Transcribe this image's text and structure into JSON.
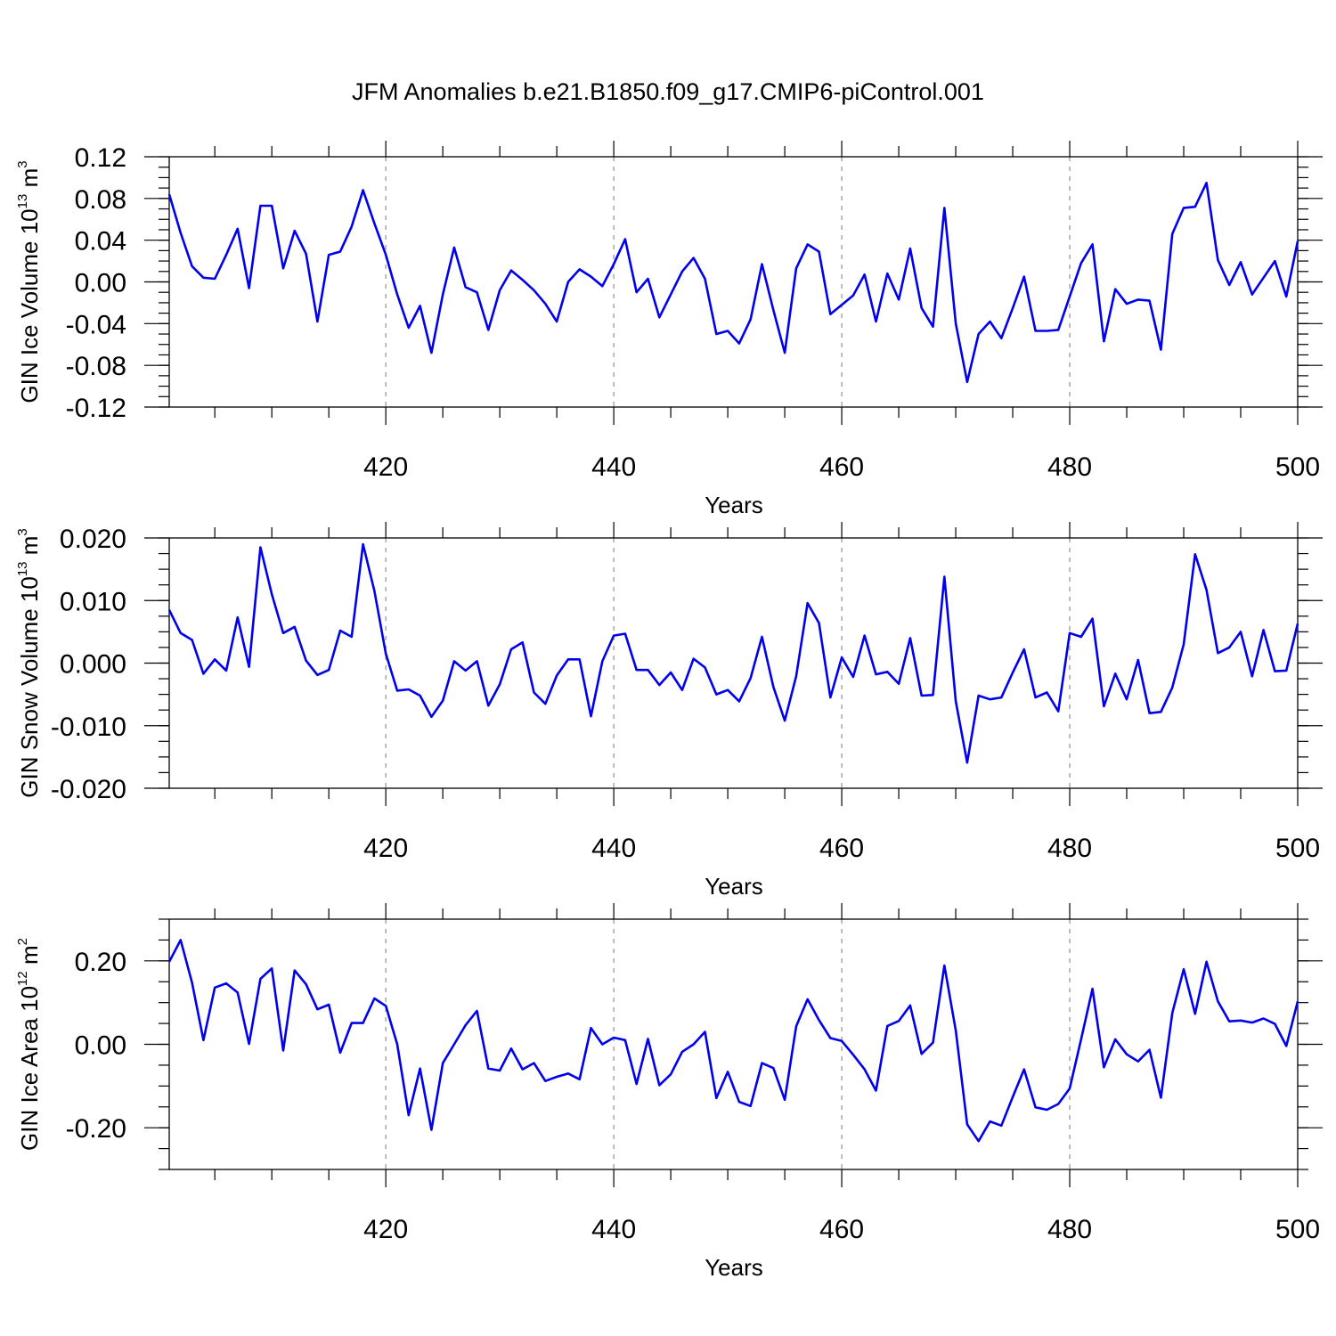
{
  "title": "JFM Anomalies b.e21.B1850.f09_g17.CMIP6-piControl.001",
  "colors": {
    "line": "#0000ee",
    "grid": "#999999",
    "axis": "#000000"
  },
  "chart_data": [
    {
      "type": "line",
      "ylabel": {
        "text": "GIN Ice Volume 10",
        "exp": "13",
        "unit": " m",
        "unit_exp": "3"
      },
      "xlabel": "Years",
      "xlim": [
        401,
        500
      ],
      "ylim": [
        -0.12,
        0.12
      ],
      "xticks": [
        420,
        440,
        460,
        480,
        500
      ],
      "yticks": [
        -0.12,
        -0.08,
        -0.04,
        0.0,
        0.04,
        0.08,
        0.12
      ],
      "ytick_labels": [
        "-0.12",
        "-0.08",
        "-0.04",
        "0.00",
        "0.04",
        "0.08",
        "0.12"
      ],
      "x_start": 401,
      "values": [
        0.084,
        0.047,
        0.015,
        0.004,
        0.003,
        0.026,
        0.051,
        -0.006,
        0.073,
        0.073,
        0.013,
        0.049,
        0.027,
        -0.038,
        0.026,
        0.029,
        0.053,
        0.088,
        0.056,
        0.026,
        -0.012,
        -0.044,
        -0.023,
        -0.068,
        -0.012,
        0.033,
        -0.005,
        -0.01,
        -0.046,
        -0.008,
        0.011,
        0.002,
        -0.008,
        -0.021,
        -0.038,
        0.0,
        0.012,
        0.005,
        -0.004,
        0.017,
        0.041,
        -0.01,
        0.003,
        -0.034,
        -0.012,
        0.01,
        0.023,
        0.003,
        -0.05,
        -0.047,
        -0.059,
        -0.036,
        0.017,
        -0.027,
        -0.068,
        0.013,
        0.036,
        0.029,
        -0.031,
        -0.022,
        -0.013,
        0.007,
        -0.038,
        0.008,
        -0.017,
        0.032,
        -0.025,
        -0.043,
        0.071,
        -0.04,
        -0.096,
        -0.05,
        -0.038,
        -0.054,
        -0.025,
        0.005,
        -0.047,
        -0.047,
        -0.046,
        -0.014,
        0.018,
        0.036,
        -0.057,
        -0.007,
        -0.021,
        -0.017,
        -0.018,
        -0.065,
        0.046,
        0.071,
        0.072,
        0.095,
        0.021,
        -0.003,
        0.019,
        -0.012,
        0.004,
        0.02,
        -0.014,
        0.039
      ]
    },
    {
      "type": "line",
      "ylabel": {
        "text": "GIN Snow Volume 10",
        "exp": "13",
        "unit": " m",
        "unit_exp": "3"
      },
      "xlabel": "Years",
      "xlim": [
        401,
        500
      ],
      "ylim": [
        -0.02,
        0.02
      ],
      "xticks": [
        420,
        440,
        460,
        480,
        500
      ],
      "yticks": [
        -0.02,
        -0.01,
        0.0,
        0.01,
        0.02
      ],
      "ytick_labels": [
        "-0.020",
        "-0.010",
        "0.000",
        "0.010",
        "0.020"
      ],
      "x_start": 401,
      "values": [
        0.0085,
        0.0048,
        0.0037,
        -0.0017,
        0.0006,
        -0.0012,
        0.0073,
        -0.0006,
        0.0185,
        0.011,
        0.0048,
        0.0058,
        0.0004,
        -0.0019,
        -0.0011,
        0.0052,
        0.0042,
        0.019,
        0.0115,
        0.0015,
        -0.0044,
        -0.0042,
        -0.0052,
        -0.0086,
        -0.006,
        0.0003,
        -0.0012,
        0.0003,
        -0.0068,
        -0.0034,
        0.0022,
        0.0033,
        -0.0047,
        -0.0065,
        -0.002,
        0.0006,
        0.0006,
        -0.0085,
        0.0003,
        0.0044,
        0.0047,
        -0.0011,
        -0.0011,
        -0.0035,
        -0.0015,
        -0.0043,
        0.0007,
        -0.0007,
        -0.005,
        -0.0043,
        -0.0061,
        -0.0024,
        0.0042,
        -0.0038,
        -0.0092,
        -0.0021,
        0.0096,
        0.0064,
        -0.0055,
        0.0009,
        -0.0022,
        0.0044,
        -0.0018,
        -0.0014,
        -0.0033,
        0.004,
        -0.0052,
        -0.0051,
        0.0138,
        -0.0061,
        -0.0159,
        -0.0052,
        -0.0058,
        -0.0055,
        -0.0015,
        0.0022,
        -0.0055,
        -0.0047,
        -0.0077,
        0.0048,
        0.0042,
        0.0071,
        -0.0069,
        -0.0017,
        -0.0058,
        0.0005,
        -0.008,
        -0.0078,
        -0.0039,
        0.003,
        0.0174,
        0.0117,
        0.0016,
        0.0025,
        0.005,
        -0.0021,
        0.0053,
        -0.0013,
        -0.0012,
        0.0063
      ]
    },
    {
      "type": "line",
      "ylabel": {
        "text": "GIN Ice Area 10",
        "exp": "12",
        "unit": " m",
        "unit_exp": "2"
      },
      "xlabel": "Years",
      "xlim": [
        401,
        500
      ],
      "ylim": [
        -0.3,
        0.3
      ],
      "xticks": [
        420,
        440,
        460,
        480,
        500
      ],
      "yticks": [
        -0.2,
        0.0,
        0.2
      ],
      "ytick_labels": [
        "-0.20",
        "0.00",
        "0.20"
      ],
      "minor_yticks": [
        -0.3,
        -0.25,
        -0.2,
        -0.15,
        -0.1,
        -0.05,
        0.0,
        0.05,
        0.1,
        0.15,
        0.2,
        0.25,
        0.3
      ],
      "x_start": 401,
      "values": [
        0.198,
        0.25,
        0.148,
        0.01,
        0.136,
        0.146,
        0.124,
        0.001,
        0.157,
        0.182,
        -0.015,
        0.177,
        0.144,
        0.084,
        0.095,
        -0.02,
        0.051,
        0.051,
        0.11,
        0.092,
        0.0,
        -0.17,
        -0.058,
        -0.205,
        -0.045,
        0.0,
        0.046,
        0.08,
        -0.058,
        -0.063,
        -0.01,
        -0.06,
        -0.045,
        -0.088,
        -0.078,
        -0.07,
        -0.084,
        0.039,
        0.0,
        0.016,
        0.01,
        -0.095,
        0.013,
        -0.098,
        -0.072,
        -0.018,
        0.0,
        0.03,
        -0.129,
        -0.066,
        -0.138,
        -0.148,
        -0.045,
        -0.057,
        -0.133,
        0.043,
        0.108,
        0.058,
        0.015,
        0.008,
        -0.025,
        -0.06,
        -0.111,
        0.044,
        0.056,
        0.093,
        -0.023,
        0.004,
        0.189,
        0.033,
        -0.192,
        -0.232,
        -0.185,
        -0.195,
        -0.126,
        -0.06,
        -0.151,
        -0.157,
        -0.143,
        -0.106,
        0.012,
        0.133,
        -0.055,
        0.012,
        -0.024,
        -0.041,
        -0.013,
        -0.128,
        0.075,
        0.18,
        0.073,
        0.198,
        0.103,
        0.055,
        0.057,
        0.052,
        0.062,
        0.049,
        -0.004,
        0.103
      ]
    }
  ]
}
